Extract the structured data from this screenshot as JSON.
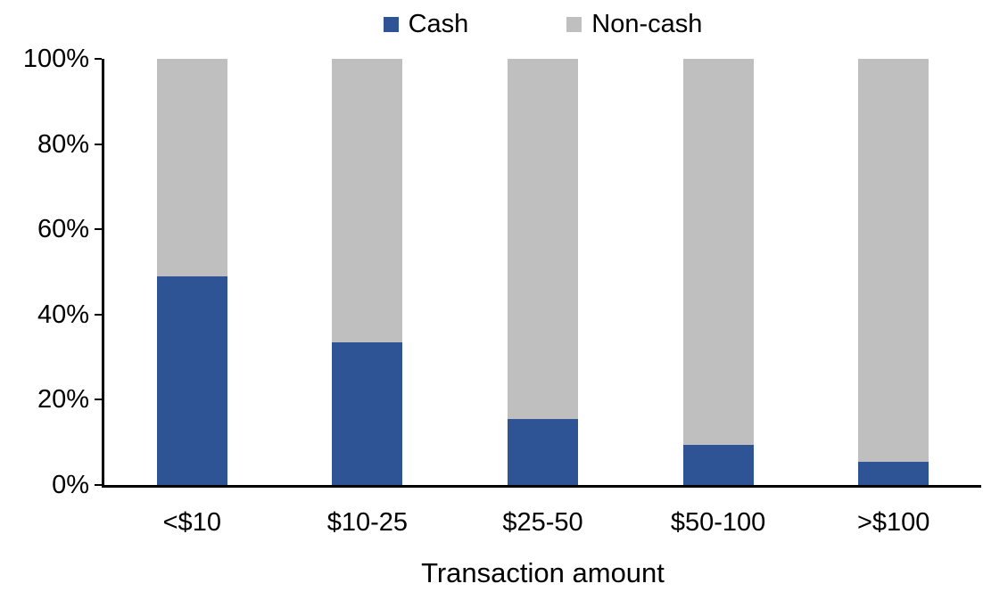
{
  "chart_data": {
    "type": "bar",
    "subtype": "stacked-100",
    "title": "",
    "xlabel": "Transaction amount",
    "ylabel": "",
    "categories": [
      "<$10",
      "$10-25",
      "$25-50",
      "$50-100",
      ">$100"
    ],
    "series": [
      {
        "name": "Cash",
        "color": "#2F5496",
        "values": [
          49,
          33.5,
          15.5,
          9.5,
          5.5
        ]
      },
      {
        "name": "Non-cash",
        "color": "#BFBFBF",
        "values": [
          51,
          66.5,
          84.5,
          90.5,
          94.5
        ]
      }
    ],
    "ylim": [
      0,
      100
    ],
    "yticks": [
      "0%",
      "20%",
      "40%",
      "60%",
      "80%",
      "100%"
    ],
    "legend_position": "top-center",
    "grid": false,
    "axis_color": "#000000",
    "text_color": "#000000"
  }
}
